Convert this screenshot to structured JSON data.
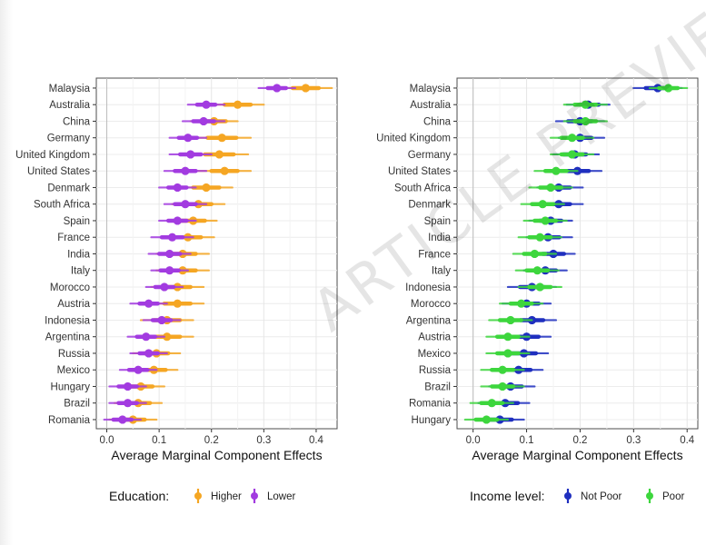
{
  "watermark_text": "ARTICLE PREVIEW",
  "chart_data": [
    {
      "type": "scatter",
      "xlabel": "Average Marginal Component Effects",
      "xlim": [
        -0.02,
        0.44
      ],
      "xticks": [
        "0.0",
        "0.1",
        "0.2",
        "0.3",
        "0.4"
      ],
      "xtick_values": [
        0.0,
        0.1,
        0.2,
        0.3,
        0.4
      ],
      "categories": [
        "Malaysia",
        "Australia",
        "China",
        "Germany",
        "United Kingdom",
        "United States",
        "Denmark",
        "South Africa",
        "Spain",
        "France",
        "India",
        "Italy",
        "Morocco",
        "Austria",
        "Indonesia",
        "Argentina",
        "Russia",
        "Mexico",
        "Hungary",
        "Brazil",
        "Romania"
      ],
      "legend_title": "Education:",
      "legend_position": "bottom",
      "grid": true,
      "series": [
        {
          "name": "Higher",
          "color": "#F5A623",
          "values": [
            0.38,
            0.25,
            0.205,
            0.22,
            0.215,
            0.225,
            0.19,
            0.175,
            0.165,
            0.155,
            0.145,
            0.145,
            0.135,
            0.135,
            0.115,
            0.115,
            0.095,
            0.09,
            0.065,
            0.06,
            0.05
          ],
          "ci_low": [
            0.33,
            0.2,
            0.16,
            0.165,
            0.16,
            0.175,
            0.14,
            0.125,
            0.12,
            0.105,
            0.095,
            0.095,
            0.085,
            0.085,
            0.065,
            0.065,
            0.05,
            0.045,
            0.02,
            0.015,
            0.005
          ],
          "ci_high": [
            0.43,
            0.3,
            0.25,
            0.275,
            0.27,
            0.275,
            0.24,
            0.225,
            0.21,
            0.205,
            0.195,
            0.195,
            0.185,
            0.185,
            0.165,
            0.165,
            0.14,
            0.135,
            0.11,
            0.105,
            0.095
          ]
        },
        {
          "name": "Lower",
          "color": "#A23BE0",
          "values": [
            0.325,
            0.19,
            0.185,
            0.155,
            0.16,
            0.15,
            0.135,
            0.15,
            0.135,
            0.125,
            0.12,
            0.12,
            0.11,
            0.08,
            0.105,
            0.075,
            0.08,
            0.06,
            0.04,
            0.04,
            0.03
          ],
          "ci_low": [
            0.29,
            0.155,
            0.145,
            0.12,
            0.12,
            0.11,
            0.1,
            0.11,
            0.1,
            0.085,
            0.08,
            0.085,
            0.075,
            0.045,
            0.07,
            0.04,
            0.045,
            0.025,
            0.005,
            0.005,
            -0.005
          ],
          "ci_high": [
            0.36,
            0.225,
            0.225,
            0.19,
            0.2,
            0.19,
            0.17,
            0.19,
            0.17,
            0.165,
            0.16,
            0.155,
            0.145,
            0.115,
            0.14,
            0.11,
            0.115,
            0.095,
            0.075,
            0.075,
            0.065
          ]
        }
      ]
    },
    {
      "type": "scatter",
      "xlabel": "Average Marginal Component Effects",
      "xlim": [
        -0.03,
        0.42
      ],
      "xticks": [
        "0.0",
        "0.1",
        "0.2",
        "0.3",
        "0.4"
      ],
      "xtick_values": [
        0.0,
        0.1,
        0.2,
        0.3,
        0.4
      ],
      "categories": [
        "Malaysia",
        "Australia",
        "China",
        "United Kingdom",
        "Germany",
        "United States",
        "South Africa",
        "Denmark",
        "Spain",
        "India",
        "France",
        "Italy",
        "Indonesia",
        "Morocco",
        "Argentina",
        "Austria",
        "Mexico",
        "Russia",
        "Brazil",
        "Romania",
        "Hungary"
      ],
      "legend_title": "Income level:",
      "legend_position": "bottom",
      "grid": true,
      "series": [
        {
          "name": "Not Poor",
          "color": "#1F2FBF",
          "values": [
            0.345,
            0.215,
            0.2,
            0.2,
            0.19,
            0.195,
            0.16,
            0.16,
            0.145,
            0.14,
            0.15,
            0.135,
            0.11,
            0.1,
            0.11,
            0.1,
            0.095,
            0.085,
            0.07,
            0.06,
            0.05
          ],
          "ci_low": [
            0.3,
            0.175,
            0.155,
            0.16,
            0.15,
            0.155,
            0.12,
            0.12,
            0.105,
            0.1,
            0.11,
            0.095,
            0.065,
            0.055,
            0.07,
            0.055,
            0.05,
            0.04,
            0.03,
            0.01,
            0.005
          ],
          "ci_high": [
            0.39,
            0.255,
            0.245,
            0.245,
            0.235,
            0.24,
            0.205,
            0.205,
            0.185,
            0.185,
            0.19,
            0.175,
            0.155,
            0.145,
            0.155,
            0.145,
            0.14,
            0.13,
            0.115,
            0.105,
            0.095
          ]
        },
        {
          "name": "Poor",
          "color": "#3DD63D",
          "values": [
            0.365,
            0.21,
            0.21,
            0.185,
            0.185,
            0.155,
            0.145,
            0.13,
            0.135,
            0.125,
            0.115,
            0.12,
            0.125,
            0.09,
            0.07,
            0.065,
            0.065,
            0.055,
            0.055,
            0.035,
            0.025
          ],
          "ci_low": [
            0.33,
            0.17,
            0.17,
            0.145,
            0.145,
            0.115,
            0.105,
            0.09,
            0.095,
            0.085,
            0.075,
            0.08,
            0.085,
            0.05,
            0.03,
            0.025,
            0.025,
            0.015,
            0.015,
            -0.005,
            -0.015
          ],
          "ci_high": [
            0.4,
            0.25,
            0.25,
            0.225,
            0.225,
            0.195,
            0.185,
            0.17,
            0.175,
            0.165,
            0.155,
            0.16,
            0.165,
            0.13,
            0.11,
            0.105,
            0.105,
            0.095,
            0.095,
            0.075,
            0.065
          ]
        }
      ]
    }
  ]
}
